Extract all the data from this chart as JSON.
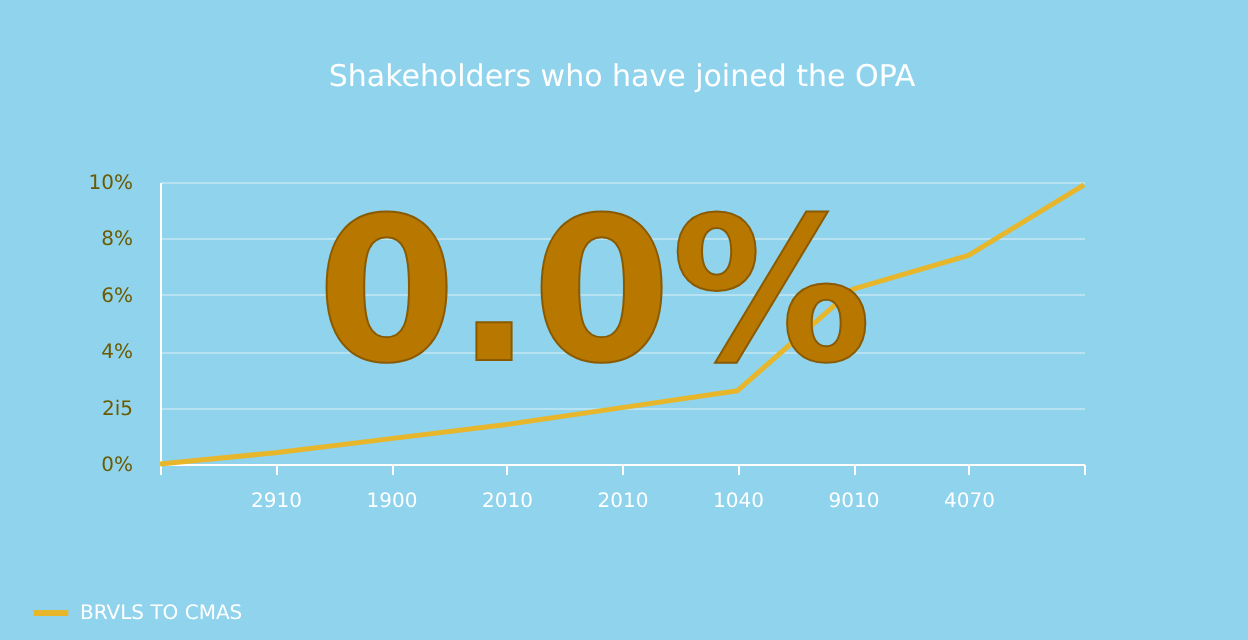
{
  "chart_data": {
    "type": "line",
    "title": "Shakeholders who have joined the OPA",
    "categories": [
      null,
      "2910",
      "1900",
      "2010",
      "2010",
      "1040",
      "9010",
      "4070",
      null
    ],
    "series": [
      {
        "name": "BRVLS TO CMAS",
        "color": "#e8b62a",
        "values": [
          0,
          0.4,
          0.9,
          1.4,
          2.0,
          2.6,
          6.2,
          7.4,
          9.9
        ]
      }
    ],
    "ylim": [
      0,
      10
    ],
    "yticks": [
      {
        "value": 0,
        "label": "0%"
      },
      {
        "value": 2,
        "label": "2i5"
      },
      {
        "value": 4,
        "label": "4%"
      },
      {
        "value": 6,
        "label": "6%"
      },
      {
        "value": 8,
        "label": "8%"
      },
      {
        "value": 10,
        "label": "10%"
      }
    ],
    "grid": "y",
    "legend": "bottom left",
    "marker": "none",
    "annotations": [
      "0.0%"
    ]
  }
}
